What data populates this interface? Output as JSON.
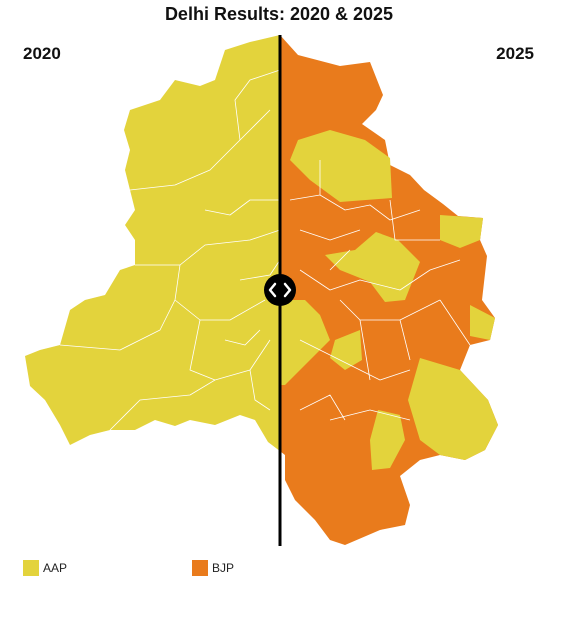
{
  "title": "Delhi Results: 2020 & 2025",
  "left_label": "2020",
  "right_label": "2025",
  "legend": [
    {
      "name": "AAP",
      "color": "#e3d33c"
    },
    {
      "name": "BJP",
      "color": "#e97b1c"
    }
  ]
}
